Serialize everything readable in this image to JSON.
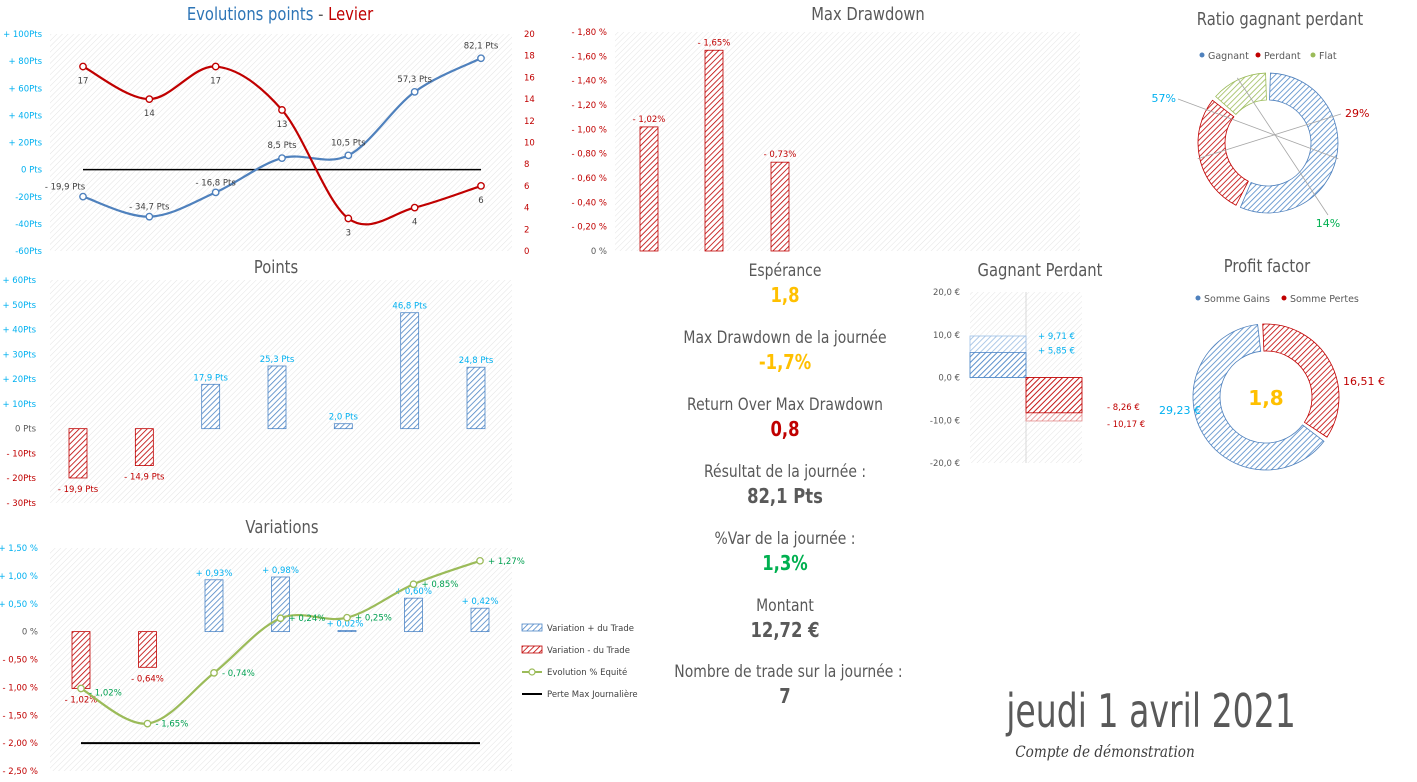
{
  "colors": {
    "blue": "#2e75b6",
    "lightblue": "#4f87c7",
    "red": "#c00000",
    "green": "#00b050",
    "olive": "#9bbb59",
    "yellow": "#ffc000",
    "gray": "#595959",
    "cyan": "#00b0f0"
  },
  "chart_data": [
    {
      "id": "evolution",
      "type": "line",
      "title_part1": "Evolutions points",
      "title_sep": " - ",
      "title_part2": "Levier",
      "y_left_ticks": [
        "+ 100Pts",
        "+ 80Pts",
        "+ 60Pts",
        "+ 40Pts",
        "+ 20Pts",
        "0 Pts",
        "-20Pts",
        "-40Pts",
        "-60Pts"
      ],
      "y_left_range": [
        -60,
        100
      ],
      "y_right_ticks": [
        "20",
        "18",
        "16",
        "14",
        "12",
        "10",
        "8",
        "6",
        "4",
        "2",
        "0"
      ],
      "y_right_range": [
        0,
        20
      ],
      "series": [
        {
          "axis": "left",
          "values": [
            -19.9,
            -34.7,
            -16.8,
            8.5,
            10.5,
            57.3,
            82.1
          ],
          "labels": [
            "- 19,9 Pts",
            "- 34,7 Pts",
            "- 16,8 Pts",
            "8,5 Pts",
            "10,5 Pts",
            "57,3 Pts",
            "82,1 Pts"
          ]
        },
        {
          "axis": "right",
          "values": [
            17,
            14,
            17,
            13,
            3,
            4,
            6
          ],
          "labels": [
            "17",
            "14",
            "17",
            "13",
            "3",
            "4",
            "6"
          ]
        }
      ]
    },
    {
      "id": "points",
      "type": "bar",
      "title": "Points",
      "y_ticks": [
        "+ 60Pts",
        "+ 50Pts",
        "+ 40Pts",
        "+ 30Pts",
        "+ 20Pts",
        "+ 10Pts",
        "0 Pts",
        "- 10Pts",
        "- 20Pts",
        "- 30Pts"
      ],
      "y_range": [
        -30,
        60
      ],
      "values": [
        -19.9,
        -14.9,
        17.9,
        25.3,
        2.0,
        46.8,
        24.8
      ],
      "labels": [
        "- 19,9 Pts",
        "- 14,9 Pts",
        "17,9 Pts",
        "25,3 Pts",
        "2,0 Pts",
        "46,8 Pts",
        "24,8 Pts"
      ]
    },
    {
      "id": "variations",
      "type": "bar+line",
      "title": "Variations",
      "y_ticks": [
        "+ 1,50 %",
        "+ 1,00 %",
        "+ 0,50 %",
        "0 %",
        "- 0,50 %",
        "- 1,00 %",
        "- 1,50 %",
        "- 2,00 %",
        "- 2,50 %"
      ],
      "y_range": [
        -2.5,
        1.5
      ],
      "bars": [
        -1.02,
        -0.64,
        0.93,
        0.98,
        0.02,
        0.6,
        0.42
      ],
      "bar_labels": [
        "- 1,02%",
        "- 0,64%",
        "+ 0,93%",
        "+ 0,98%",
        "+ 0,02%",
        "+ 0,60%",
        "+ 0,42%"
      ],
      "equity": [
        -1.02,
        -1.65,
        -0.74,
        0.24,
        0.25,
        0.85,
        1.27
      ],
      "equity_labels": [
        "- 1,02%",
        "- 1,65%",
        "- 0,74%",
        "+ 0,24%",
        "+ 0,25%",
        "+ 0,85%",
        "+ 1,27%"
      ],
      "max_loss": -2.0,
      "legend": [
        "Variation + du Trade",
        "Variation - du Trade",
        "Evolution % Equité",
        "Perte Max Journalière"
      ]
    },
    {
      "id": "drawdown",
      "type": "bar",
      "title": "Max Drawdown",
      "y_ticks": [
        "- 1,80 %",
        "- 1,60 %",
        "- 1,40 %",
        "- 1,20 %",
        "- 1,00 %",
        "- 0,80 %",
        "- 0,60 %",
        "- 0,40 %",
        "- 0,20 %",
        "0 %"
      ],
      "y_range": [
        0,
        1.8
      ],
      "values": [
        1.02,
        1.65,
        0.73
      ],
      "labels": [
        "- 1,02%",
        "- 1,65%",
        "- 0,73%"
      ]
    },
    {
      "id": "ratio",
      "type": "pie",
      "title": "Ratio gagnant perdant",
      "legend": [
        "Gagnant",
        "Perdant",
        "Flat"
      ],
      "values": [
        57,
        29,
        14
      ],
      "labels": [
        "57%",
        "29%",
        "14%"
      ]
    },
    {
      "id": "gagnant",
      "type": "bar",
      "title": "Gagnant Perdant",
      "y_ticks": [
        "20,0 €",
        "10,0 €",
        "0,0 €",
        "-10,0 €",
        "-20,0 €"
      ],
      "y_range": [
        -20,
        20
      ],
      "win_max": 9.71,
      "win_avg": 5.85,
      "loss_avg": -8.26,
      "loss_max": -10.17,
      "labels": [
        "+ 9,71 €",
        "+ 5,85 €",
        "- 8,26 €",
        "- 10,17 €"
      ]
    },
    {
      "id": "profit",
      "type": "pie",
      "title": "Profit factor",
      "legend": [
        "Somme Gains",
        "Somme Pertes"
      ],
      "values": [
        29.23,
        16.51
      ],
      "labels": [
        "29,23 €",
        "16,51 €"
      ],
      "center": "1,8"
    }
  ],
  "stats": [
    {
      "label": "Espérance",
      "value": "1,8",
      "color": "#ffc000"
    },
    {
      "label": "Max Drawdown de la journée",
      "value": "-1,7%",
      "color": "#ffc000"
    },
    {
      "label": "Return Over Max Drawdown",
      "value": "0,8",
      "color": "#c00000"
    },
    {
      "label": "Résultat de la journée :",
      "value": "82,1 Pts",
      "color": "#595959"
    },
    {
      "label": "%Var de la journée :",
      "value": "1,3%",
      "color": "#00b050"
    },
    {
      "label": "Montant",
      "value": "12,72 €",
      "color": "#595959"
    },
    {
      "label": "Nombre de trade sur la journée :",
      "value": "7",
      "color": "#595959"
    }
  ],
  "date": "jeudi 1 avril 2021",
  "account": "Compte de démonstration"
}
